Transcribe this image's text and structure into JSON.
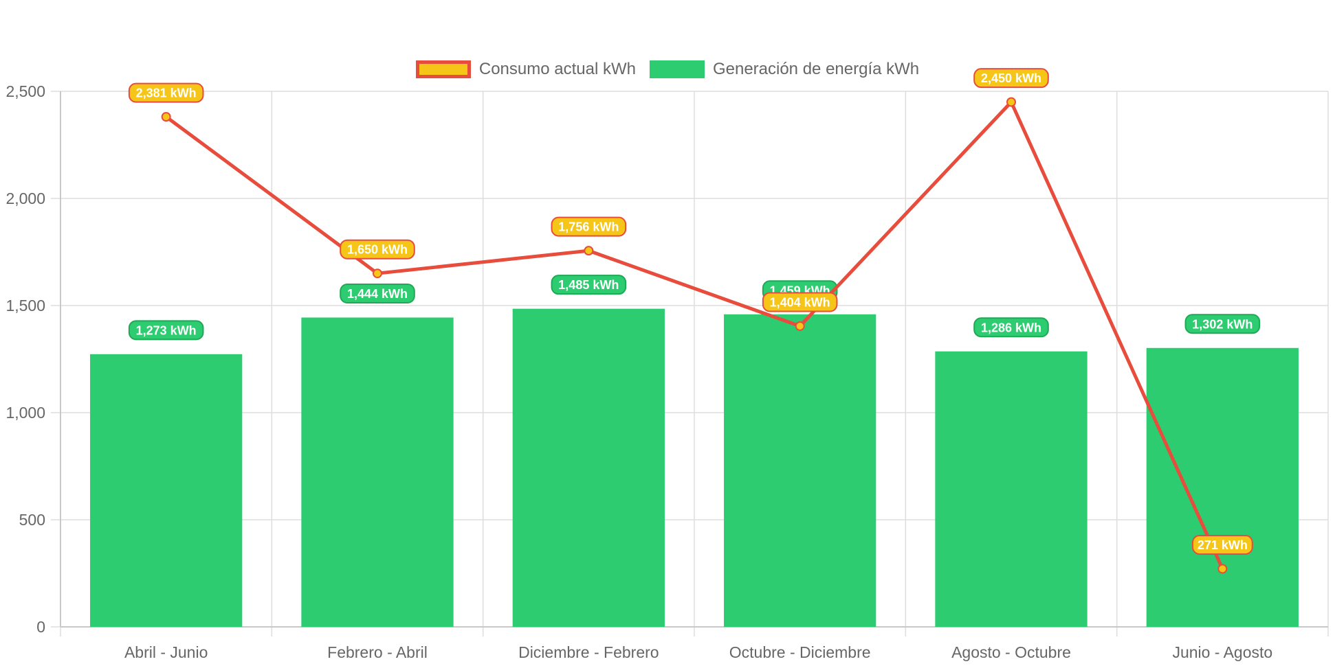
{
  "legend": {
    "line_label": "Consumo actual kWh",
    "bar_label": "Generación de energía kWh"
  },
  "colors": {
    "line": "#e74c3c",
    "line_fill": "#f5c518",
    "bar": "#2ecc71",
    "bar_label_bg": "#2ecc71",
    "bar_label_border": "#1fa855",
    "grid": "#dddddd",
    "tick_text": "#666666"
  },
  "chart_data": {
    "type": "bar",
    "categories": [
      "Abril - Junio",
      "Febrero - Abril",
      "Diciembre - Febrero",
      "Octubre - Diciembre",
      "Agosto - Octubre",
      "Junio - Agosto"
    ],
    "series": [
      {
        "name": "Generación de energía kWh",
        "type": "bar",
        "values": [
          1273,
          1444,
          1485,
          1459,
          1286,
          1302
        ]
      },
      {
        "name": "Consumo actual kWh",
        "type": "line",
        "values": [
          2381,
          1650,
          1756,
          1404,
          2450,
          271
        ]
      }
    ],
    "data_label_suffix": " kWh",
    "ylim": [
      0,
      2500
    ],
    "yticks": [
      0,
      500,
      1000,
      1500,
      2000,
      2500
    ],
    "ytick_labels": [
      "0",
      "500",
      "1,000",
      "1,500",
      "2,000",
      "2,500"
    ],
    "grid": true,
    "legend_position": "top"
  }
}
